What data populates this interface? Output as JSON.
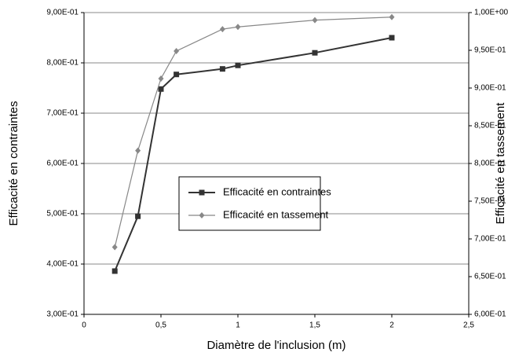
{
  "chart_data": {
    "type": "line",
    "x_label": "Diamètre de l'inclusion (m)",
    "y_label": "Efficacité en contraintes",
    "y2_label": "Efficacité en tassement",
    "x": [
      0.2,
      0.35,
      0.5,
      0.6,
      0.9,
      1.0,
      1.5,
      2.0
    ],
    "series": [
      {
        "name": "Efficacité en contraintes",
        "color": "#333333",
        "marker": "square",
        "values": [
          0.386,
          0.495,
          0.748,
          0.777,
          0.788,
          0.795,
          0.82,
          0.85
        ]
      },
      {
        "name": "Efficacité en tassement",
        "color": "#888888",
        "marker": "diamond",
        "axis": "y2",
        "values": [
          0.689,
          0.817,
          0.9125,
          0.949,
          0.978,
          0.981,
          0.99,
          0.994
        ]
      }
    ],
    "xlim": [
      0,
      2.5
    ],
    "xticks": [
      0,
      {
        "value": 0.5,
        "label": "0,5"
      },
      1,
      {
        "value": 1.5,
        "label": "1,5"
      },
      2,
      {
        "value": 2.5,
        "label": "2,5"
      }
    ],
    "ylim": [
      0.3,
      0.9
    ],
    "yticks": [
      {
        "value": 0.3,
        "label": "3,00E-01"
      },
      {
        "value": 0.4,
        "label": "4,00E-01"
      },
      {
        "value": 0.5,
        "label": "5,00E-01"
      },
      {
        "value": 0.6,
        "label": "6,00E-01"
      },
      {
        "value": 0.7,
        "label": "7,00E-01"
      },
      {
        "value": 0.8,
        "label": "8,00E-01"
      },
      {
        "value": 0.9,
        "label": "9,00E-01"
      }
    ],
    "y2lim": [
      0.6,
      1.0
    ],
    "y2ticks": [
      {
        "value": 0.6,
        "label": "6,00E-01"
      },
      {
        "value": 0.65,
        "label": "6,50E-01"
      },
      {
        "value": 0.7,
        "label": "7,00E-01"
      },
      {
        "value": 0.75,
        "label": "7,50E-01"
      },
      {
        "value": 0.8,
        "label": "8,00E-01"
      },
      {
        "value": 0.85,
        "label": "8,50E-01"
      },
      {
        "value": 0.9,
        "label": "9,00E-01"
      },
      {
        "value": 0.95,
        "label": "9,50E-01"
      },
      {
        "value": 1.0,
        "label": "1,00E+00"
      }
    ],
    "grid": true,
    "legend": "center"
  }
}
